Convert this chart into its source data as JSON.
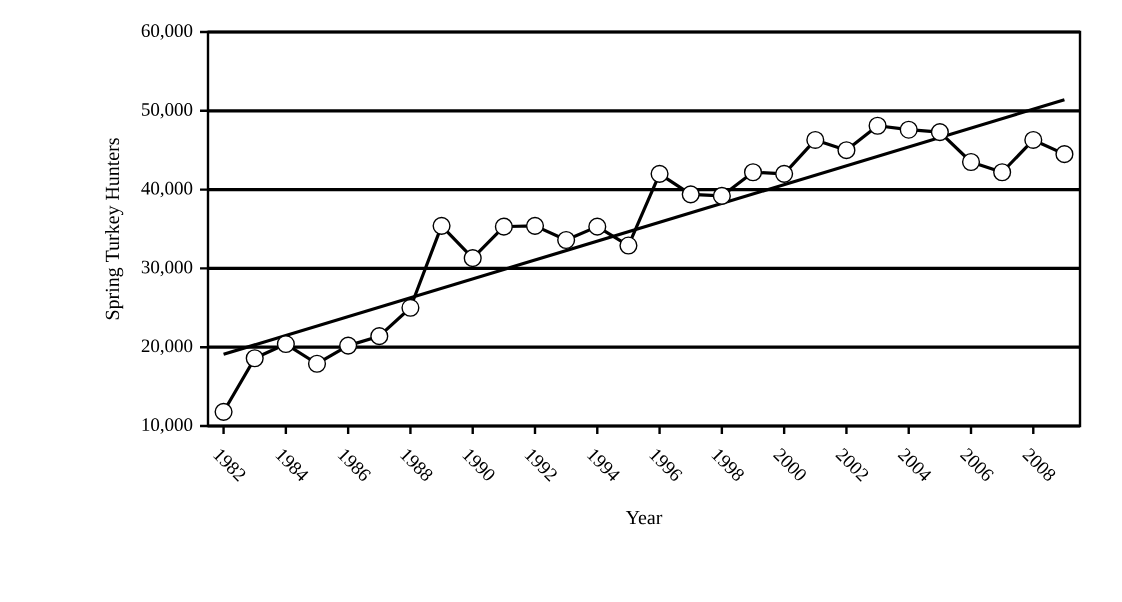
{
  "chart_data": {
    "type": "line",
    "xlabel": "Year",
    "ylabel": "Spring Turkey Hunters",
    "x": [
      1982,
      1983,
      1984,
      1985,
      1986,
      1987,
      1988,
      1989,
      1990,
      1991,
      1992,
      1993,
      1994,
      1995,
      1996,
      1997,
      1998,
      1999,
      2000,
      2001,
      2002,
      2003,
      2004,
      2005,
      2006,
      2007,
      2008,
      2009
    ],
    "series": [
      {
        "color": "#000000",
        "marker": "circle",
        "values": [
          11800,
          18600,
          20400,
          17900,
          20200,
          21400,
          25000,
          35400,
          31300,
          35300,
          35400,
          33600,
          35300,
          32900,
          42000,
          39400,
          39200,
          42200,
          42000,
          46300,
          45000,
          48100,
          47600,
          47300,
          43500,
          42200,
          46300,
          44500
        ]
      },
      {
        "color": "#000000",
        "marker": "none",
        "x": [
          1982,
          2009
        ],
        "values": [
          19100,
          51400
        ]
      }
    ],
    "xlim": [
      1981.5,
      2009.5
    ],
    "xticks": [
      1982,
      1984,
      1986,
      1988,
      1990,
      1992,
      1994,
      1996,
      1998,
      2000,
      2002,
      2004,
      2006,
      2008
    ],
    "ylim": [
      10000,
      60000
    ],
    "yticks": [
      {
        "value": 10000,
        "label": "10,000"
      },
      {
        "value": 20000,
        "label": "20,000"
      },
      {
        "value": 30000,
        "label": "30,000"
      },
      {
        "value": 40000,
        "label": "40,000"
      },
      {
        "value": 50000,
        "label": "50,000"
      },
      {
        "value": 60000,
        "label": "60,000"
      }
    ],
    "grid": "y",
    "line_style": "solid"
  }
}
